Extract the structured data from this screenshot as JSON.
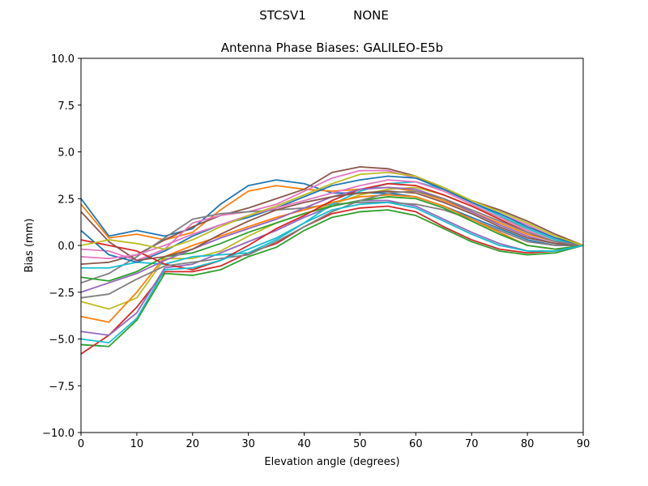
{
  "chart_data": {
    "type": "line",
    "suptitle_left": "STCSV1",
    "suptitle_right": "NONE",
    "title": "Antenna Phase Biases: GALILEO-E5b",
    "xlabel": "Elevation angle (degrees)",
    "ylabel": "Bias (mm)",
    "xlim": [
      0,
      90
    ],
    "ylim": [
      -10,
      10
    ],
    "xticks": [
      0,
      10,
      20,
      30,
      40,
      50,
      60,
      70,
      80,
      90
    ],
    "xtick_labels": [
      "0",
      "10",
      "20",
      "30",
      "40",
      "50",
      "60",
      "70",
      "80",
      "90"
    ],
    "yticks": [
      -10,
      -7.5,
      -5,
      -2.5,
      0,
      2.5,
      5,
      7.5,
      10
    ],
    "ytick_labels": [
      "−10.0",
      "−7.5",
      "−5.0",
      "−2.5",
      "0.0",
      "2.5",
      "5.0",
      "7.5",
      "10.0"
    ],
    "grid": false,
    "x": [
      0,
      5,
      10,
      15,
      20,
      25,
      30,
      35,
      40,
      45,
      50,
      55,
      60,
      65,
      70,
      75,
      80,
      85,
      90
    ],
    "colors": [
      "#1f77b4",
      "#ff7f0e",
      "#2ca02c",
      "#d62728",
      "#9467bd",
      "#8c564b",
      "#e377c2",
      "#7f7f7f",
      "#bcbd22",
      "#17becf"
    ],
    "series": [
      {
        "values": [
          2.5,
          0.5,
          0.8,
          0.5,
          0.9,
          2.2,
          3.2,
          3.5,
          3.3,
          2.8,
          2.8,
          2.8,
          2.6,
          2.1,
          1.5,
          0.9,
          0.3,
          0.0,
          0
        ]
      },
      {
        "values": [
          2.2,
          0.4,
          0.6,
          0.3,
          0.7,
          1.9,
          2.9,
          3.2,
          3.0,
          2.9,
          3.0,
          3.1,
          2.9,
          2.4,
          1.8,
          1.2,
          0.6,
          0.2,
          0
        ]
      },
      {
        "values": [
          -5.3,
          -5.4,
          -4.0,
          -1.5,
          -1.6,
          -1.3,
          -0.6,
          -0.1,
          0.8,
          1.5,
          1.8,
          1.9,
          1.6,
          0.9,
          0.2,
          -0.3,
          -0.5,
          -0.4,
          0
        ]
      },
      {
        "values": [
          -5.8,
          -4.8,
          -3.3,
          -1.4,
          -1.4,
          -1.1,
          -0.4,
          0.1,
          1.0,
          1.7,
          2.0,
          2.1,
          1.8,
          1.0,
          0.3,
          -0.2,
          -0.4,
          -0.3,
          0
        ]
      },
      {
        "values": [
          -4.6,
          -4.8,
          -3.6,
          -1.2,
          -1.0,
          -0.4,
          0.2,
          0.8,
          1.5,
          2.1,
          2.4,
          2.4,
          2.1,
          1.4,
          0.7,
          0.1,
          -0.3,
          -0.3,
          0
        ]
      },
      {
        "values": [
          -1.0,
          -0.9,
          -0.5,
          0.3,
          1.0,
          1.6,
          2.0,
          2.5,
          3.0,
          3.9,
          4.2,
          4.1,
          3.7,
          3.0,
          2.4,
          1.9,
          1.3,
          0.6,
          0
        ]
      },
      {
        "values": [
          -0.2,
          -0.3,
          -0.8,
          -0.2,
          1.2,
          1.6,
          1.8,
          2.2,
          2.9,
          3.6,
          4.0,
          4.0,
          3.6,
          3.0,
          2.3,
          1.7,
          1.1,
          0.4,
          0
        ]
      },
      {
        "values": [
          -2.0,
          -1.5,
          -0.6,
          0.4,
          1.4,
          1.7,
          1.8,
          1.9,
          2.0,
          2.2,
          2.3,
          2.3,
          2.2,
          1.9,
          1.4,
          0.8,
          0.2,
          0.0,
          0
        ]
      },
      {
        "values": [
          -3.0,
          -3.4,
          -2.8,
          -0.7,
          -0.7,
          -0.3,
          0.5,
          1.2,
          1.7,
          2.2,
          2.7,
          3.0,
          3.1,
          2.7,
          2.1,
          1.5,
          0.9,
          0.3,
          0
        ]
      },
      {
        "values": [
          -1.2,
          -1.2,
          -0.9,
          -1.0,
          -0.6,
          -0.5,
          -0.4,
          0.3,
          1.2,
          2.2,
          2.9,
          3.3,
          3.4,
          3.0,
          2.3,
          1.6,
          0.9,
          0.3,
          0
        ]
      },
      {
        "values": [
          0.8,
          -0.5,
          -0.9,
          -0.3,
          0.5,
          1.1,
          1.5,
          2.0,
          2.6,
          3.2,
          3.5,
          3.7,
          3.6,
          3.0,
          2.3,
          1.7,
          1.0,
          0.4,
          0
        ]
      },
      {
        "values": [
          -3.8,
          -4.1,
          -2.5,
          -0.6,
          0.0,
          0.5,
          1.0,
          1.5,
          1.9,
          2.3,
          2.6,
          2.7,
          2.6,
          2.1,
          1.4,
          0.7,
          0.0,
          -0.2,
          0
        ]
      },
      {
        "values": [
          -1.7,
          -1.9,
          -1.4,
          -0.6,
          -0.4,
          0.1,
          0.7,
          1.2,
          1.7,
          2.1,
          2.4,
          2.6,
          2.5,
          2.0,
          1.3,
          0.6,
          0.0,
          -0.2,
          0
        ]
      },
      {
        "values": [
          0.3,
          0.0,
          -0.3,
          -1.0,
          -1.3,
          -0.8,
          0.0,
          0.9,
          1.6,
          2.4,
          3.0,
          3.3,
          3.2,
          2.7,
          2.1,
          1.4,
          0.7,
          0.2,
          0
        ]
      },
      {
        "values": [
          -2.5,
          -2.0,
          -1.5,
          -0.8,
          -0.2,
          0.4,
          0.9,
          1.4,
          2.0,
          2.6,
          3.0,
          3.1,
          3.0,
          2.5,
          1.8,
          1.1,
          0.5,
          0.1,
          0
        ]
      },
      {
        "values": [
          1.8,
          0.2,
          -0.8,
          -0.6,
          -0.2,
          0.6,
          1.3,
          1.9,
          2.3,
          2.6,
          2.8,
          2.9,
          2.8,
          2.3,
          1.7,
          1.0,
          0.4,
          0.1,
          0
        ]
      },
      {
        "values": [
          -0.6,
          -0.7,
          -0.5,
          0.0,
          0.6,
          1.1,
          1.6,
          2.0,
          2.4,
          2.8,
          3.2,
          3.5,
          3.4,
          2.9,
          2.2,
          1.5,
          0.8,
          0.2,
          0
        ]
      },
      {
        "values": [
          -2.8,
          -2.6,
          -1.8,
          -1.1,
          -0.9,
          -0.7,
          -0.5,
          0.2,
          1.0,
          1.8,
          2.4,
          2.8,
          2.9,
          2.5,
          1.9,
          1.3,
          0.7,
          0.2,
          0
        ]
      },
      {
        "values": [
          0.0,
          0.3,
          0.1,
          -0.2,
          0.3,
          1.0,
          1.6,
          2.1,
          2.7,
          3.3,
          3.8,
          3.9,
          3.7,
          3.1,
          2.4,
          1.8,
          1.2,
          0.5,
          0
        ]
      },
      {
        "values": [
          -5.0,
          -5.2,
          -3.9,
          -1.3,
          -1.2,
          -0.8,
          -0.2,
          0.4,
          1.2,
          1.9,
          2.2,
          2.3,
          2.0,
          1.3,
          0.6,
          0.0,
          -0.3,
          -0.3,
          0
        ]
      }
    ]
  }
}
